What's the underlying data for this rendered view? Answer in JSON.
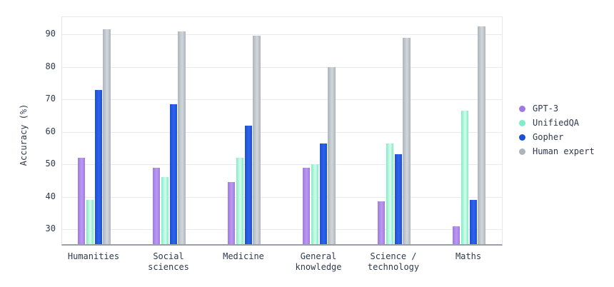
{
  "chart_data": {
    "type": "bar",
    "title": "",
    "ylabel": "Accuracy (%)",
    "xlabel": "",
    "categories": [
      "Humanities",
      "Social sciences",
      "Medicine",
      "General knowledge",
      "Science / technology",
      "Maths"
    ],
    "category_label_lines": [
      [
        "Humanities"
      ],
      [
        "Social",
        "sciences"
      ],
      [
        "Medicine"
      ],
      [
        "General",
        "knowledge"
      ],
      [
        "Science /",
        "technology"
      ],
      [
        "Maths"
      ]
    ],
    "series": [
      {
        "name": "GPT-3",
        "color": "#a07ae3",
        "color_light": "#bb99f0",
        "values": [
          52,
          49,
          44.5,
          49,
          38.5,
          31
        ]
      },
      {
        "name": "UnifiedQA",
        "color": "#7fedc6",
        "color_light": "#d6fcec",
        "values": [
          39,
          46,
          52,
          50,
          56.5,
          66.5
        ]
      },
      {
        "name": "Gopher",
        "color": "#1b4fd6",
        "color_light": "#2e63ea",
        "values": [
          73,
          68.5,
          62,
          56.5,
          53,
          39
        ]
      },
      {
        "name": "Human expert",
        "color": "#adb4bc",
        "color_light": "#d2d7dc",
        "values": [
          91.5,
          91,
          89.5,
          80,
          89,
          92.5
        ]
      }
    ],
    "yticks": [
      30,
      40,
      50,
      60,
      70,
      80,
      90
    ],
    "ylim": [
      25.4,
      95.3
    ],
    "grid": true,
    "legend_position": "right"
  }
}
